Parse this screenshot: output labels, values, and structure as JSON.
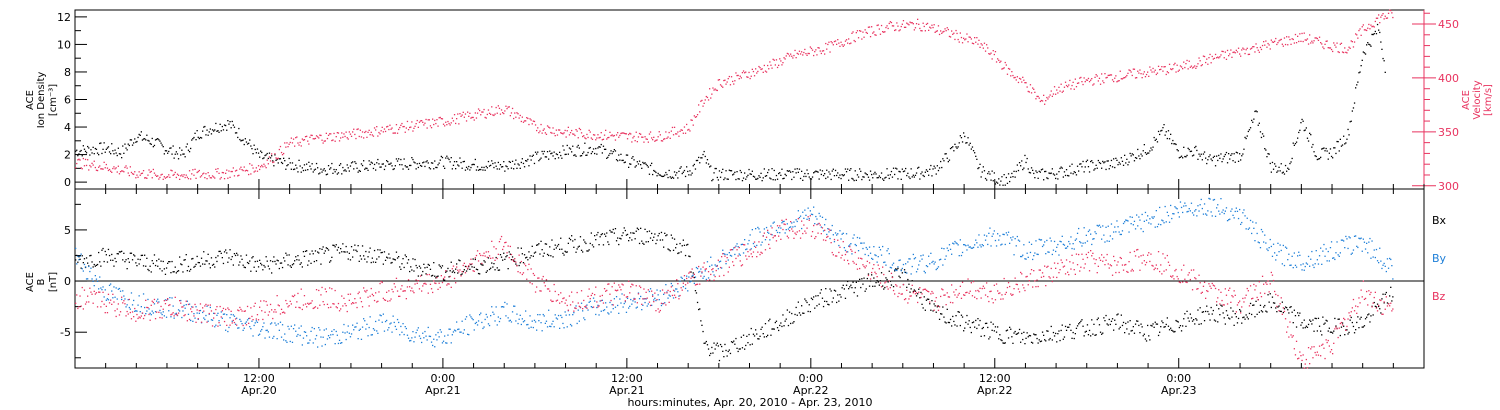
{
  "colors": {
    "black": "#000000",
    "pink": "#e8335f",
    "blue": "#1e7fd8"
  },
  "chart_data": [
    {
      "type": "scatter",
      "title": "",
      "ylabel_left": [
        "ACE",
        "Ion Density",
        "[cm⁻³]"
      ],
      "ylabel_right": [
        "ACE",
        "Velocity",
        "[km/s]"
      ],
      "y_left_ticks": [
        "0",
        "2",
        "4",
        "6",
        "8",
        "10",
        "12"
      ],
      "y_left_lim": [
        -0.5,
        12.5
      ],
      "y_right_ticks": [
        "300",
        "350",
        "400",
        "450"
      ],
      "y_right_lim": [
        297,
        463
      ],
      "x_hours_lim": [
        0,
        88
      ],
      "series": [
        {
          "role": "density",
          "axis": "left",
          "color": "black",
          "points": [
            [
              0,
              2.3
            ],
            [
              2,
              2.5
            ],
            [
              3,
              2.2
            ],
            [
              4,
              3.4
            ],
            [
              5,
              3.0
            ],
            [
              6,
              2.4
            ],
            [
              7,
              2.0
            ],
            [
              8,
              3.6
            ],
            [
              9,
              4.0
            ],
            [
              10,
              4.3
            ],
            [
              11,
              3.2
            ],
            [
              12,
              1.9
            ],
            [
              14,
              1.3
            ],
            [
              16,
              1.0
            ],
            [
              18,
              1.1
            ],
            [
              20,
              1.3
            ],
            [
              22,
              1.4
            ],
            [
              24,
              1.5
            ],
            [
              26,
              1.3
            ],
            [
              28,
              1.2
            ],
            [
              30,
              1.8
            ],
            [
              32,
              2.3
            ],
            [
              34,
              2.5
            ],
            [
              36,
              1.6
            ],
            [
              38,
              0.8
            ],
            [
              39,
              0.7
            ],
            [
              40,
              0.8
            ],
            [
              41,
              1.9
            ],
            [
              41.5,
              0.6
            ],
            [
              43,
              0.6
            ],
            [
              45,
              0.6
            ],
            [
              47,
              0.6
            ],
            [
              49,
              0.6
            ],
            [
              51,
              0.6
            ],
            [
              53,
              0.6
            ],
            [
              55,
              0.7
            ],
            [
              56,
              0.9
            ],
            [
              57,
              2.0
            ],
            [
              58,
              3.5
            ],
            [
              59,
              0.9
            ],
            [
              60,
              0.3
            ],
            [
              61,
              0.2
            ],
            [
              62,
              1.7
            ],
            [
              62.5,
              0.5
            ],
            [
              64,
              0.7
            ],
            [
              66,
              1.2
            ],
            [
              68,
              1.4
            ],
            [
              70,
              2.5
            ],
            [
              71,
              3.8
            ],
            [
              72,
              2.2
            ],
            [
              73,
              2.3
            ],
            [
              74,
              1.6
            ],
            [
              75,
              1.8
            ],
            [
              76,
              2.0
            ],
            [
              77,
              5.0
            ],
            [
              78,
              1.2
            ],
            [
              79,
              0.9
            ],
            [
              80,
              4.5
            ],
            [
              81,
              2.0
            ],
            [
              82,
              2.2
            ],
            [
              83,
              3.5
            ],
            [
              84,
              9.5
            ],
            [
              85,
              11.2
            ],
            [
              85.5,
              8.0
            ]
          ]
        },
        {
          "role": "velocity",
          "axis": "right",
          "color": "pink",
          "points": [
            [
              0,
              322
            ],
            [
              2,
              318
            ],
            [
              4,
              312
            ],
            [
              6,
              310
            ],
            [
              8,
              311
            ],
            [
              10,
              312
            ],
            [
              12,
              318
            ],
            [
              13,
              328
            ],
            [
              14,
              340
            ],
            [
              16,
              345
            ],
            [
              18,
              348
            ],
            [
              20,
              352
            ],
            [
              22,
              356
            ],
            [
              24,
              360
            ],
            [
              26,
              366
            ],
            [
              28,
              372
            ],
            [
              29,
              364
            ],
            [
              30,
              355
            ],
            [
              32,
              350
            ],
            [
              34,
              348
            ],
            [
              36,
              346
            ],
            [
              38,
              346
            ],
            [
              39,
              350
            ],
            [
              40,
              354
            ],
            [
              41,
              380
            ],
            [
              42,
              396
            ],
            [
              43,
              400
            ],
            [
              45,
              410
            ],
            [
              47,
              422
            ],
            [
              49,
              428
            ],
            [
              51,
              440
            ],
            [
              53,
              448
            ],
            [
              55,
              450
            ],
            [
              57,
              442
            ],
            [
              59,
              432
            ],
            [
              60,
              420
            ],
            [
              61,
              405
            ],
            [
              62,
              395
            ],
            [
              63,
              378
            ],
            [
              64,
              390
            ],
            [
              66,
              398
            ],
            [
              68,
              402
            ],
            [
              70,
              406
            ],
            [
              72,
              410
            ],
            [
              74,
              418
            ],
            [
              76,
              425
            ],
            [
              78,
              432
            ],
            [
              80,
              438
            ],
            [
              82,
              430
            ],
            [
              83,
              428
            ],
            [
              84,
              445
            ],
            [
              85,
              456
            ],
            [
              86,
              460
            ]
          ]
        }
      ]
    },
    {
      "type": "scatter",
      "title": "",
      "ylabel_left": [
        "ACE",
        "B",
        "[nT]"
      ],
      "y_left_ticks": [
        "-5",
        "0",
        "5"
      ],
      "y_left_lim": [
        -8.5,
        9
      ],
      "x_hours_lim": [
        0,
        88
      ],
      "legend": [
        "Bx",
        "By",
        "Bz"
      ],
      "legend_placement": "right",
      "series": [
        {
          "name": "Bx",
          "color": "black",
          "points": [
            [
              0,
              2
            ],
            [
              2,
              2.5
            ],
            [
              4,
              2
            ],
            [
              6,
              1.5
            ],
            [
              8,
              2
            ],
            [
              10,
              2.5
            ],
            [
              12,
              1.5
            ],
            [
              14,
              2
            ],
            [
              16,
              2.5
            ],
            [
              18,
              3
            ],
            [
              20,
              2.5
            ],
            [
              22,
              1.5
            ],
            [
              24,
              1
            ],
            [
              26,
              1.5
            ],
            [
              28,
              2
            ],
            [
              30,
              3
            ],
            [
              32,
              3.5
            ],
            [
              34,
              4
            ],
            [
              36,
              4.5
            ],
            [
              38,
              4.5
            ],
            [
              40,
              3
            ],
            [
              41,
              -6
            ],
            [
              42,
              -7
            ],
            [
              44,
              -5.5
            ],
            [
              46,
              -4
            ],
            [
              48,
              -2
            ],
            [
              50,
              -1
            ],
            [
              52,
              0
            ],
            [
              54,
              0.5
            ],
            [
              56,
              -3
            ],
            [
              58,
              -4
            ],
            [
              60,
              -5
            ],
            [
              62,
              -5.5
            ],
            [
              64,
              -5
            ],
            [
              66,
              -4.5
            ],
            [
              68,
              -4
            ],
            [
              70,
              -5
            ],
            [
              72,
              -4
            ],
            [
              74,
              -3
            ],
            [
              76,
              -3.5
            ],
            [
              78,
              -2
            ],
            [
              80,
              -4
            ],
            [
              82,
              -4.5
            ],
            [
              84,
              -4
            ],
            [
              86,
              -1
            ]
          ]
        },
        {
          "name": "By",
          "color": "blue",
          "points": [
            [
              0,
              2.5
            ],
            [
              2,
              -1
            ],
            [
              4,
              -2
            ],
            [
              6,
              -2.5
            ],
            [
              8,
              -3
            ],
            [
              10,
              -4
            ],
            [
              12,
              -4.5
            ],
            [
              14,
              -5
            ],
            [
              16,
              -5.5
            ],
            [
              18,
              -5
            ],
            [
              20,
              -4
            ],
            [
              22,
              -5
            ],
            [
              24,
              -5.5
            ],
            [
              26,
              -4
            ],
            [
              28,
              -3
            ],
            [
              30,
              -4
            ],
            [
              32,
              -3.5
            ],
            [
              34,
              -2.5
            ],
            [
              36,
              -2
            ],
            [
              38,
              -1.5
            ],
            [
              40,
              0
            ],
            [
              42,
              2
            ],
            [
              44,
              4
            ],
            [
              46,
              5.5
            ],
            [
              48,
              6.5
            ],
            [
              50,
              4
            ],
            [
              52,
              3
            ],
            [
              54,
              1.5
            ],
            [
              56,
              2
            ],
            [
              58,
              3.5
            ],
            [
              60,
              4.5
            ],
            [
              62,
              3
            ],
            [
              64,
              3.5
            ],
            [
              66,
              4.5
            ],
            [
              68,
              5
            ],
            [
              70,
              6
            ],
            [
              72,
              7
            ],
            [
              74,
              7.5
            ],
            [
              76,
              6.5
            ],
            [
              78,
              3
            ],
            [
              80,
              2
            ],
            [
              82,
              3
            ],
            [
              84,
              4
            ],
            [
              86,
              1
            ]
          ]
        },
        {
          "name": "Bz",
          "color": "pink",
          "points": [
            [
              0,
              -1.5
            ],
            [
              2,
              -2
            ],
            [
              4,
              -3
            ],
            [
              6,
              -2.5
            ],
            [
              8,
              -3
            ],
            [
              10,
              -3.5
            ],
            [
              12,
              -3
            ],
            [
              14,
              -2
            ],
            [
              16,
              -1.5
            ],
            [
              18,
              -2
            ],
            [
              20,
              -1
            ],
            [
              22,
              -0.5
            ],
            [
              24,
              0
            ],
            [
              26,
              2
            ],
            [
              28,
              3.5
            ],
            [
              30,
              0
            ],
            [
              32,
              -2
            ],
            [
              34,
              -1.5
            ],
            [
              36,
              -1
            ],
            [
              38,
              -2
            ],
            [
              40,
              0
            ],
            [
              42,
              1.5
            ],
            [
              44,
              3
            ],
            [
              46,
              5
            ],
            [
              48,
              5.5
            ],
            [
              50,
              3
            ],
            [
              52,
              1
            ],
            [
              54,
              -1
            ],
            [
              56,
              -2
            ],
            [
              58,
              -0.5
            ],
            [
              60,
              -1
            ],
            [
              62,
              0
            ],
            [
              64,
              1
            ],
            [
              66,
              2
            ],
            [
              68,
              1.5
            ],
            [
              70,
              2.5
            ],
            [
              72,
              1
            ],
            [
              74,
              -1
            ],
            [
              76,
              -2
            ],
            [
              78,
              0
            ],
            [
              80,
              -7.8
            ],
            [
              82,
              -6
            ],
            [
              84,
              -1
            ],
            [
              86,
              -3
            ]
          ]
        }
      ]
    }
  ],
  "x_axis": {
    "ticks": [
      {
        "hours": 12,
        "time": "12:00",
        "date": "Apr.20"
      },
      {
        "hours": 24,
        "time": "0:00",
        "date": "Apr.21"
      },
      {
        "hours": 36,
        "time": "12:00",
        "date": "Apr.21"
      },
      {
        "hours": 48,
        "time": "0:00",
        "date": "Apr.22"
      },
      {
        "hours": 60,
        "time": "12:00",
        "date": "Apr.22"
      },
      {
        "hours": 72,
        "time": "0:00",
        "date": "Apr.23"
      }
    ],
    "label": "hours:minutes, Apr. 20, 2010 - Apr. 23, 2010"
  }
}
